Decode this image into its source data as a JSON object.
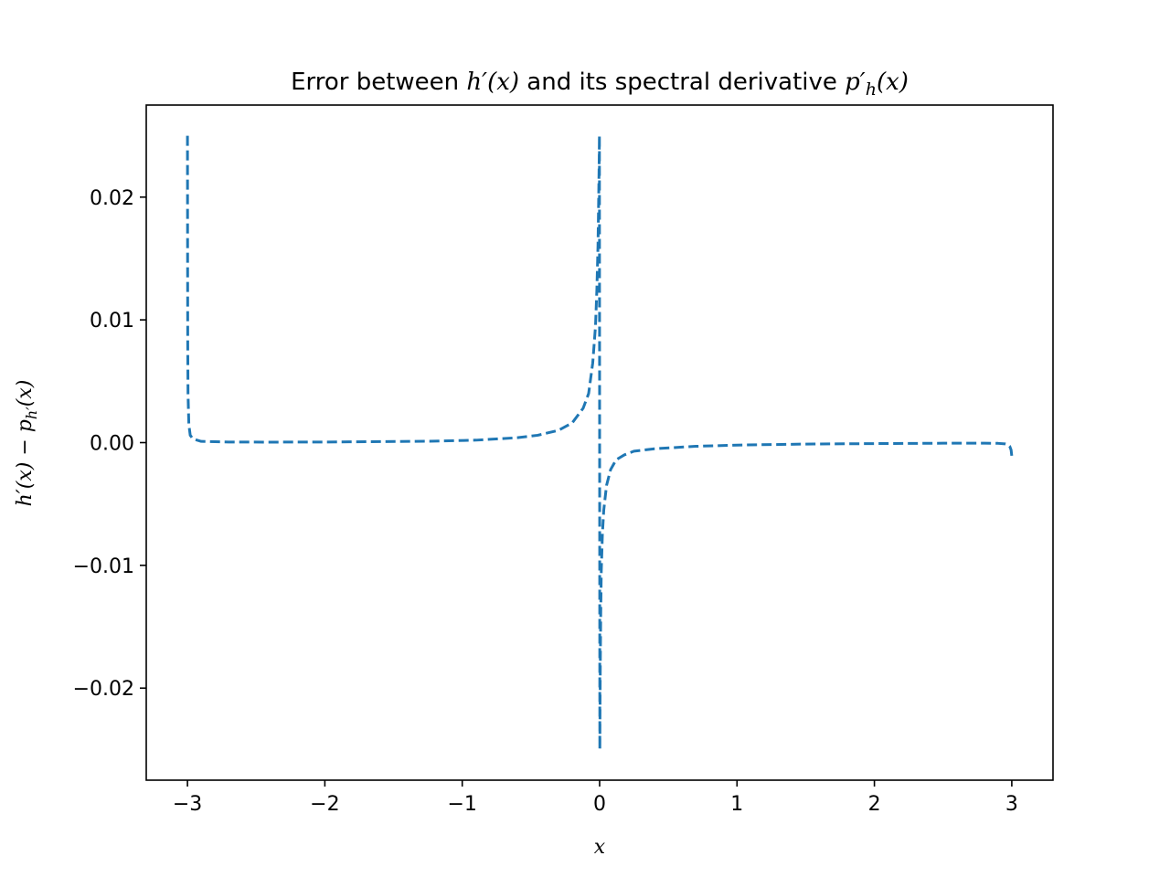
{
  "chart_data": {
    "type": "line",
    "title": {
      "prefix": "Error between ",
      "math1": "h′(x)",
      "middle": " and its spectral derivative ",
      "math2_main": "p′",
      "math2_sub": "h",
      "math2_tail": "(x)"
    },
    "xlabel": "x",
    "ylabel": {
      "part1": "h′(x) − p",
      "sub": "h′",
      "part2": "(x)"
    },
    "xlim": [
      -3.3,
      3.3
    ],
    "ylim": [
      -0.0275,
      0.0275
    ],
    "x_ticks": [
      -3,
      -2,
      -1,
      0,
      1,
      2,
      3
    ],
    "x_tick_labels": [
      "−3",
      "−2",
      "−1",
      "0",
      "1",
      "2",
      "3"
    ],
    "y_ticks": [
      -0.02,
      -0.01,
      0.0,
      0.01,
      0.02
    ],
    "y_tick_labels": [
      "−0.02",
      "−0.01",
      "0.00",
      "0.01",
      "0.02"
    ],
    "grid": false,
    "series": [
      {
        "color": "#1f77b4",
        "line_style": "dashed",
        "x": [
          -3.0,
          -2.999,
          -2.998,
          -2.996,
          -2.99,
          -2.98,
          -2.96,
          -2.9,
          -2.7,
          -2.4,
          -2.0,
          -1.6,
          -1.2,
          -0.9,
          -0.6,
          -0.45,
          -0.3,
          -0.2,
          -0.12,
          -0.08,
          -0.05,
          -0.03,
          -0.02,
          -0.012,
          -0.008,
          -0.005,
          -0.003,
          -0.0015,
          0.0015,
          0.003,
          0.005,
          0.008,
          0.012,
          0.02,
          0.03,
          0.05,
          0.08,
          0.12,
          0.18,
          0.25,
          0.4,
          0.7,
          1.0,
          1.5,
          2.0,
          2.5,
          2.8,
          2.9,
          2.95,
          2.97,
          2.985,
          2.995,
          3.0
        ],
        "y": [
          0.025,
          0.015,
          0.008,
          0.004,
          0.0015,
          0.0006,
          0.0003,
          0.0001,
          5e-05,
          4e-05,
          5e-05,
          8e-05,
          0.00012,
          0.0002,
          0.0004,
          0.0006,
          0.001,
          0.0016,
          0.0028,
          0.004,
          0.0065,
          0.0095,
          0.0125,
          0.016,
          0.019,
          0.0215,
          0.0232,
          0.025,
          -0.025,
          -0.0215,
          -0.018,
          -0.014,
          -0.0105,
          -0.0075,
          -0.0055,
          -0.0035,
          -0.0022,
          -0.0014,
          -0.001,
          -0.0007,
          -0.0005,
          -0.0003,
          -0.0002,
          -0.00012,
          -8e-05,
          -5e-05,
          -5e-05,
          -6e-05,
          -0.0001,
          -0.00015,
          -0.0003,
          -0.0006,
          -0.0011
        ]
      }
    ]
  }
}
